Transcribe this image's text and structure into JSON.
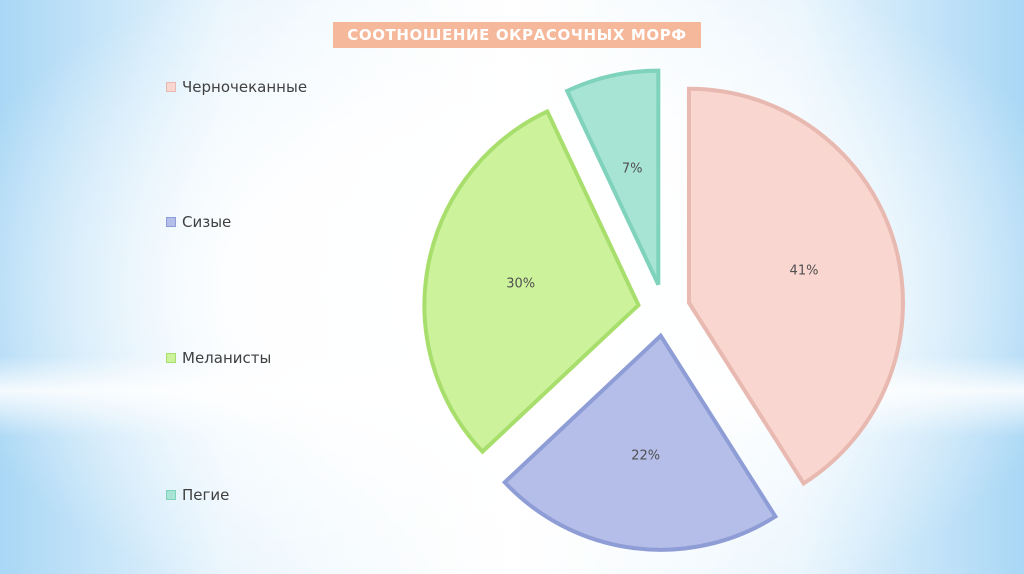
{
  "chart_data": {
    "type": "pie",
    "title": "СООТНОШЕНИЕ ОКРАСОЧНЫХ МОРФ",
    "legend_position": "left",
    "exploded": true,
    "series": [
      {
        "name": "Черночеканные",
        "value": 41,
        "label": "41%",
        "color": "#f9d6cf",
        "stroke": "#e8b9b0"
      },
      {
        "name": "Сизые",
        "value": 22,
        "label": "22%",
        "color": "#b4bee8",
        "stroke": "#8f9dd6"
      },
      {
        "name": "Меланисты",
        "value": 30,
        "label": "30%",
        "color": "#ccf39c",
        "stroke": "#a8de6c"
      },
      {
        "name": "Пегие",
        "value": 7,
        "label": "7%",
        "color": "#a7e4d3",
        "stroke": "#7fd2bb"
      }
    ]
  }
}
